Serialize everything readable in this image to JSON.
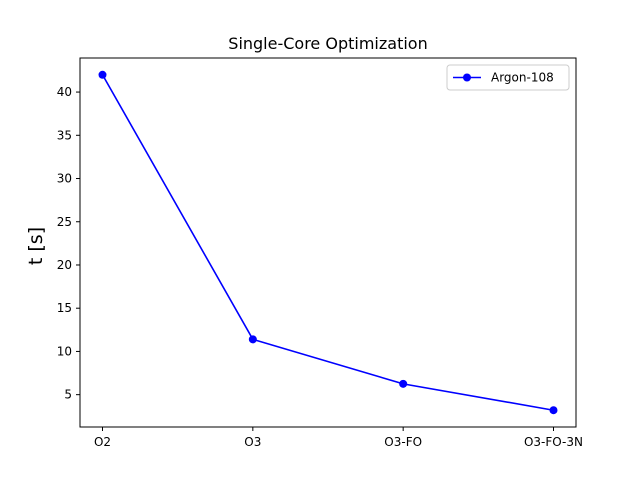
{
  "chart_data": {
    "type": "line",
    "title": "Single-Core Optimization",
    "xlabel": "",
    "ylabel": "t [s]",
    "categories": [
      "O2",
      "O3",
      "O3-FO",
      "O3-FO-3N"
    ],
    "ylim": [
      1.26,
      43.94
    ],
    "yticks": [
      5,
      10,
      15,
      20,
      25,
      30,
      35,
      40
    ],
    "series": [
      {
        "name": "Argon-108",
        "values": [
          42.0,
          11.4,
          6.25,
          3.2
        ],
        "color": "#0000ff",
        "marker": "circle"
      }
    ],
    "legend": {
      "placement": "top-right"
    },
    "grid": false
  }
}
